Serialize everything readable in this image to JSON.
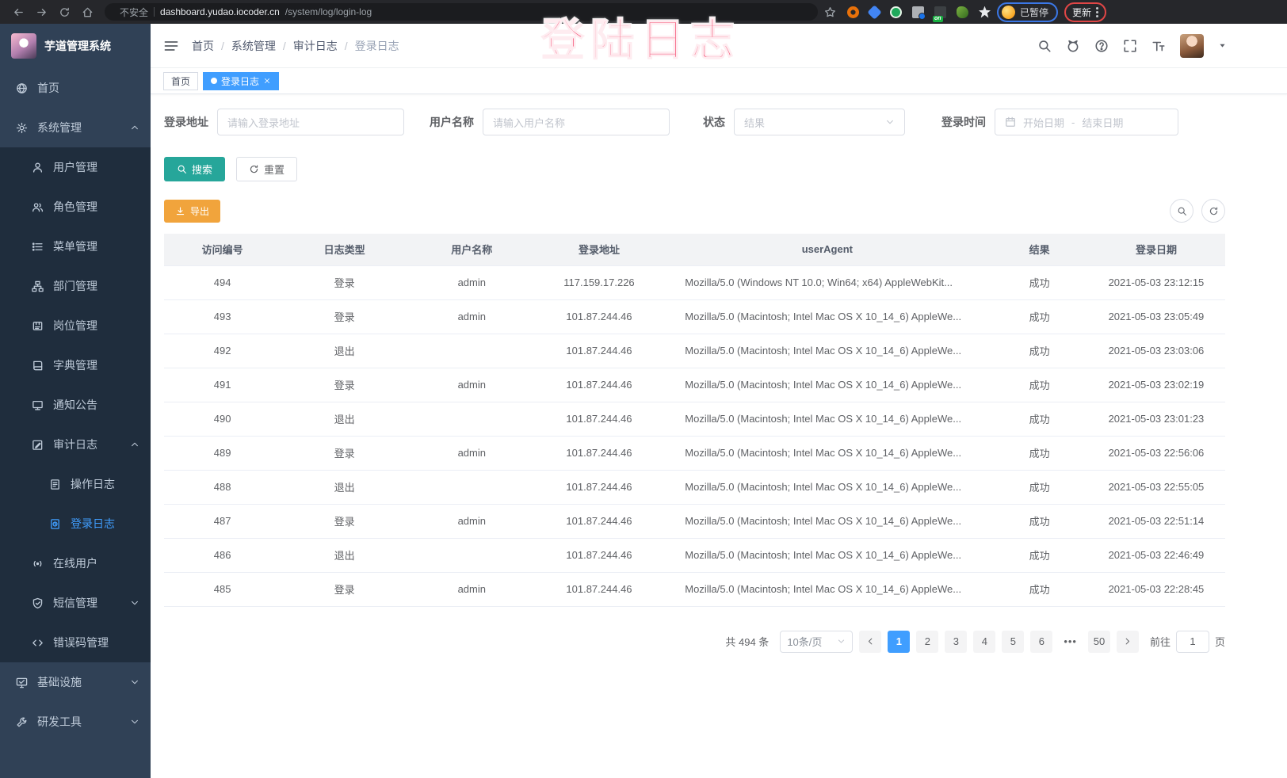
{
  "browser": {
    "security_label": "不安全",
    "url_host": "dashboard.yudao.iocoder.cn",
    "url_path": "/system/log/login-log",
    "extension_on_badge": "on",
    "paused_badge": "已暂停",
    "update_button": "更新"
  },
  "overlay": {
    "title": "登陆日志",
    "color": "#f43f67"
  },
  "sidebar": {
    "title": "芋道管理系统",
    "items": [
      {
        "key": "home",
        "icon": "globe",
        "label": "首页",
        "level": 1,
        "chevron": "",
        "active": false
      },
      {
        "key": "system-mgmt",
        "icon": "gear",
        "label": "系统管理",
        "level": 1,
        "chevron": "up",
        "active": false
      },
      {
        "key": "user-mgmt",
        "icon": "user",
        "label": "用户管理",
        "level": 2,
        "chevron": "",
        "active": false
      },
      {
        "key": "role-mgmt",
        "icon": "users",
        "label": "角色管理",
        "level": 2,
        "chevron": "",
        "active": false
      },
      {
        "key": "menu-mgmt",
        "icon": "menu",
        "label": "菜单管理",
        "level": 2,
        "chevron": "",
        "active": false
      },
      {
        "key": "dept-mgmt",
        "icon": "tree",
        "label": "部门管理",
        "level": 2,
        "chevron": "",
        "active": false
      },
      {
        "key": "post-mgmt",
        "icon": "badge",
        "label": "岗位管理",
        "level": 2,
        "chevron": "",
        "active": false
      },
      {
        "key": "dict-mgmt",
        "icon": "book",
        "label": "字典管理",
        "level": 2,
        "chevron": "",
        "active": false
      },
      {
        "key": "notice",
        "icon": "notice",
        "label": "通知公告",
        "level": 2,
        "chevron": "",
        "active": false
      },
      {
        "key": "audit-log",
        "icon": "edit",
        "label": "审计日志",
        "level": 2,
        "chevron": "up",
        "active": false
      },
      {
        "key": "operate-log",
        "icon": "doc",
        "label": "操作日志",
        "level": 3,
        "chevron": "",
        "active": false
      },
      {
        "key": "login-log",
        "icon": "loginlog",
        "label": "登录日志",
        "level": 3,
        "chevron": "",
        "active": true
      },
      {
        "key": "online-user",
        "icon": "online",
        "label": "在线用户",
        "level": 2,
        "chevron": "",
        "active": false
      },
      {
        "key": "sms-mgmt",
        "icon": "shield",
        "label": "短信管理",
        "level": 2,
        "chevron": "down",
        "active": false
      },
      {
        "key": "error-code-mgmt",
        "icon": "code",
        "label": "错误码管理",
        "level": 2,
        "chevron": "",
        "active": false
      },
      {
        "key": "infrastructure",
        "icon": "monitor",
        "label": "基础设施",
        "level": 1,
        "chevron": "down",
        "active": false
      },
      {
        "key": "dev-tools",
        "icon": "tool",
        "label": "研发工具",
        "level": 1,
        "chevron": "down",
        "active": false
      }
    ]
  },
  "header": {
    "breadcrumb": [
      "首页",
      "系统管理",
      "审计日志",
      "登录日志"
    ]
  },
  "tags": {
    "home_label": "首页",
    "active_label": "登录日志"
  },
  "filters": {
    "address_label": "登录地址",
    "address_placeholder": "请输入登录地址",
    "username_label": "用户名称",
    "username_placeholder": "请输入用户名称",
    "status_label": "状态",
    "status_placeholder": "结果",
    "time_label": "登录时间",
    "date_start_placeholder": "开始日期",
    "date_separator": "-",
    "date_end_placeholder": "结束日期",
    "search_button": "搜索",
    "reset_button": "重置"
  },
  "toolbar": {
    "export_button": "导出"
  },
  "table": {
    "columns": [
      "访问编号",
      "日志类型",
      "用户名称",
      "登录地址",
      "userAgent",
      "结果",
      "登录日期"
    ],
    "rows": [
      [
        "494",
        "登录",
        "admin",
        "117.159.17.226",
        "Mozilla/5.0 (Windows NT 10.0; Win64; x64) AppleWebKit...",
        "成功",
        "2021-05-03 23:12:15"
      ],
      [
        "493",
        "登录",
        "admin",
        "101.87.244.46",
        "Mozilla/5.0 (Macintosh; Intel Mac OS X 10_14_6) AppleWe...",
        "成功",
        "2021-05-03 23:05:49"
      ],
      [
        "492",
        "退出",
        "",
        "101.87.244.46",
        "Mozilla/5.0 (Macintosh; Intel Mac OS X 10_14_6) AppleWe...",
        "成功",
        "2021-05-03 23:03:06"
      ],
      [
        "491",
        "登录",
        "admin",
        "101.87.244.46",
        "Mozilla/5.0 (Macintosh; Intel Mac OS X 10_14_6) AppleWe...",
        "成功",
        "2021-05-03 23:02:19"
      ],
      [
        "490",
        "退出",
        "",
        "101.87.244.46",
        "Mozilla/5.0 (Macintosh; Intel Mac OS X 10_14_6) AppleWe...",
        "成功",
        "2021-05-03 23:01:23"
      ],
      [
        "489",
        "登录",
        "admin",
        "101.87.244.46",
        "Mozilla/5.0 (Macintosh; Intel Mac OS X 10_14_6) AppleWe...",
        "成功",
        "2021-05-03 22:56:06"
      ],
      [
        "488",
        "退出",
        "",
        "101.87.244.46",
        "Mozilla/5.0 (Macintosh; Intel Mac OS X 10_14_6) AppleWe...",
        "成功",
        "2021-05-03 22:55:05"
      ],
      [
        "487",
        "登录",
        "admin",
        "101.87.244.46",
        "Mozilla/5.0 (Macintosh; Intel Mac OS X 10_14_6) AppleWe...",
        "成功",
        "2021-05-03 22:51:14"
      ],
      [
        "486",
        "退出",
        "",
        "101.87.244.46",
        "Mozilla/5.0 (Macintosh; Intel Mac OS X 10_14_6) AppleWe...",
        "成功",
        "2021-05-03 22:46:49"
      ],
      [
        "485",
        "登录",
        "admin",
        "101.87.244.46",
        "Mozilla/5.0 (Macintosh; Intel Mac OS X 10_14_6) AppleWe...",
        "成功",
        "2021-05-03 22:28:45"
      ]
    ]
  },
  "pagination": {
    "total": "共 494 条",
    "page_size": "10条/页",
    "pages": [
      "1",
      "2",
      "3",
      "4",
      "5",
      "6",
      "•••",
      "50"
    ],
    "active_page": "1",
    "goto_label": "前往",
    "goto_value": "1",
    "goto_suffix": "页"
  },
  "colors": {
    "accent_blue": "#409eff",
    "search_teal": "#26a69a",
    "export_orange": "#f1a43c",
    "annotation_pink": "#f43f67",
    "sidebar_bg": "#304156",
    "sidebar_sub_bg": "#1f2d3d"
  }
}
